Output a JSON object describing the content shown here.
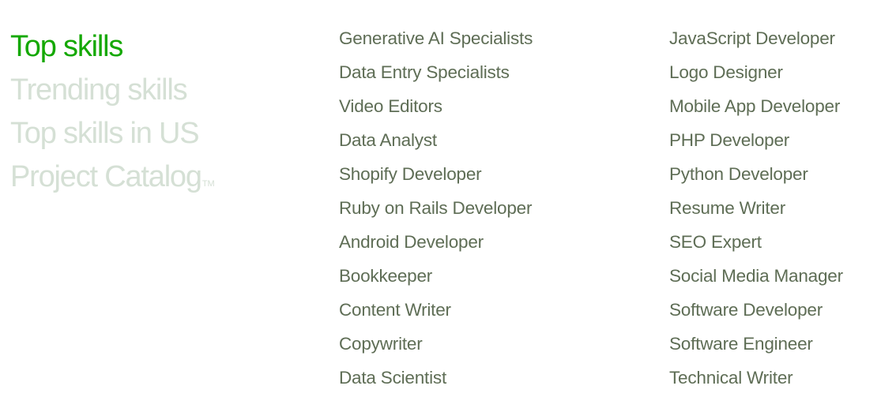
{
  "tabs": [
    {
      "label": "Top skills",
      "active": true
    },
    {
      "label": "Trending skills",
      "active": false
    },
    {
      "label": "Top skills in US",
      "active": false
    },
    {
      "label": "Project Catalog",
      "trademark": "TM",
      "active": false
    }
  ],
  "skills_col1": [
    "Generative AI Specialists",
    "Data Entry Specialists",
    "Video Editors",
    "Data Analyst",
    "Shopify Developer",
    "Ruby on Rails Developer",
    "Android Developer",
    "Bookkeeper",
    "Content Writer",
    "Copywriter",
    "Data Scientist"
  ],
  "skills_col2": [
    "JavaScript Developer",
    "Logo Designer",
    "Mobile App Developer",
    "PHP Developer",
    "Python Developer",
    "Resume Writer",
    "SEO Expert",
    "Social Media Manager",
    "Software Developer",
    "Software Engineer",
    "Technical Writer"
  ],
  "colors": {
    "accent": "#14a800",
    "inactive_tab": "#d5e0d5",
    "link": "#5e6d55"
  }
}
